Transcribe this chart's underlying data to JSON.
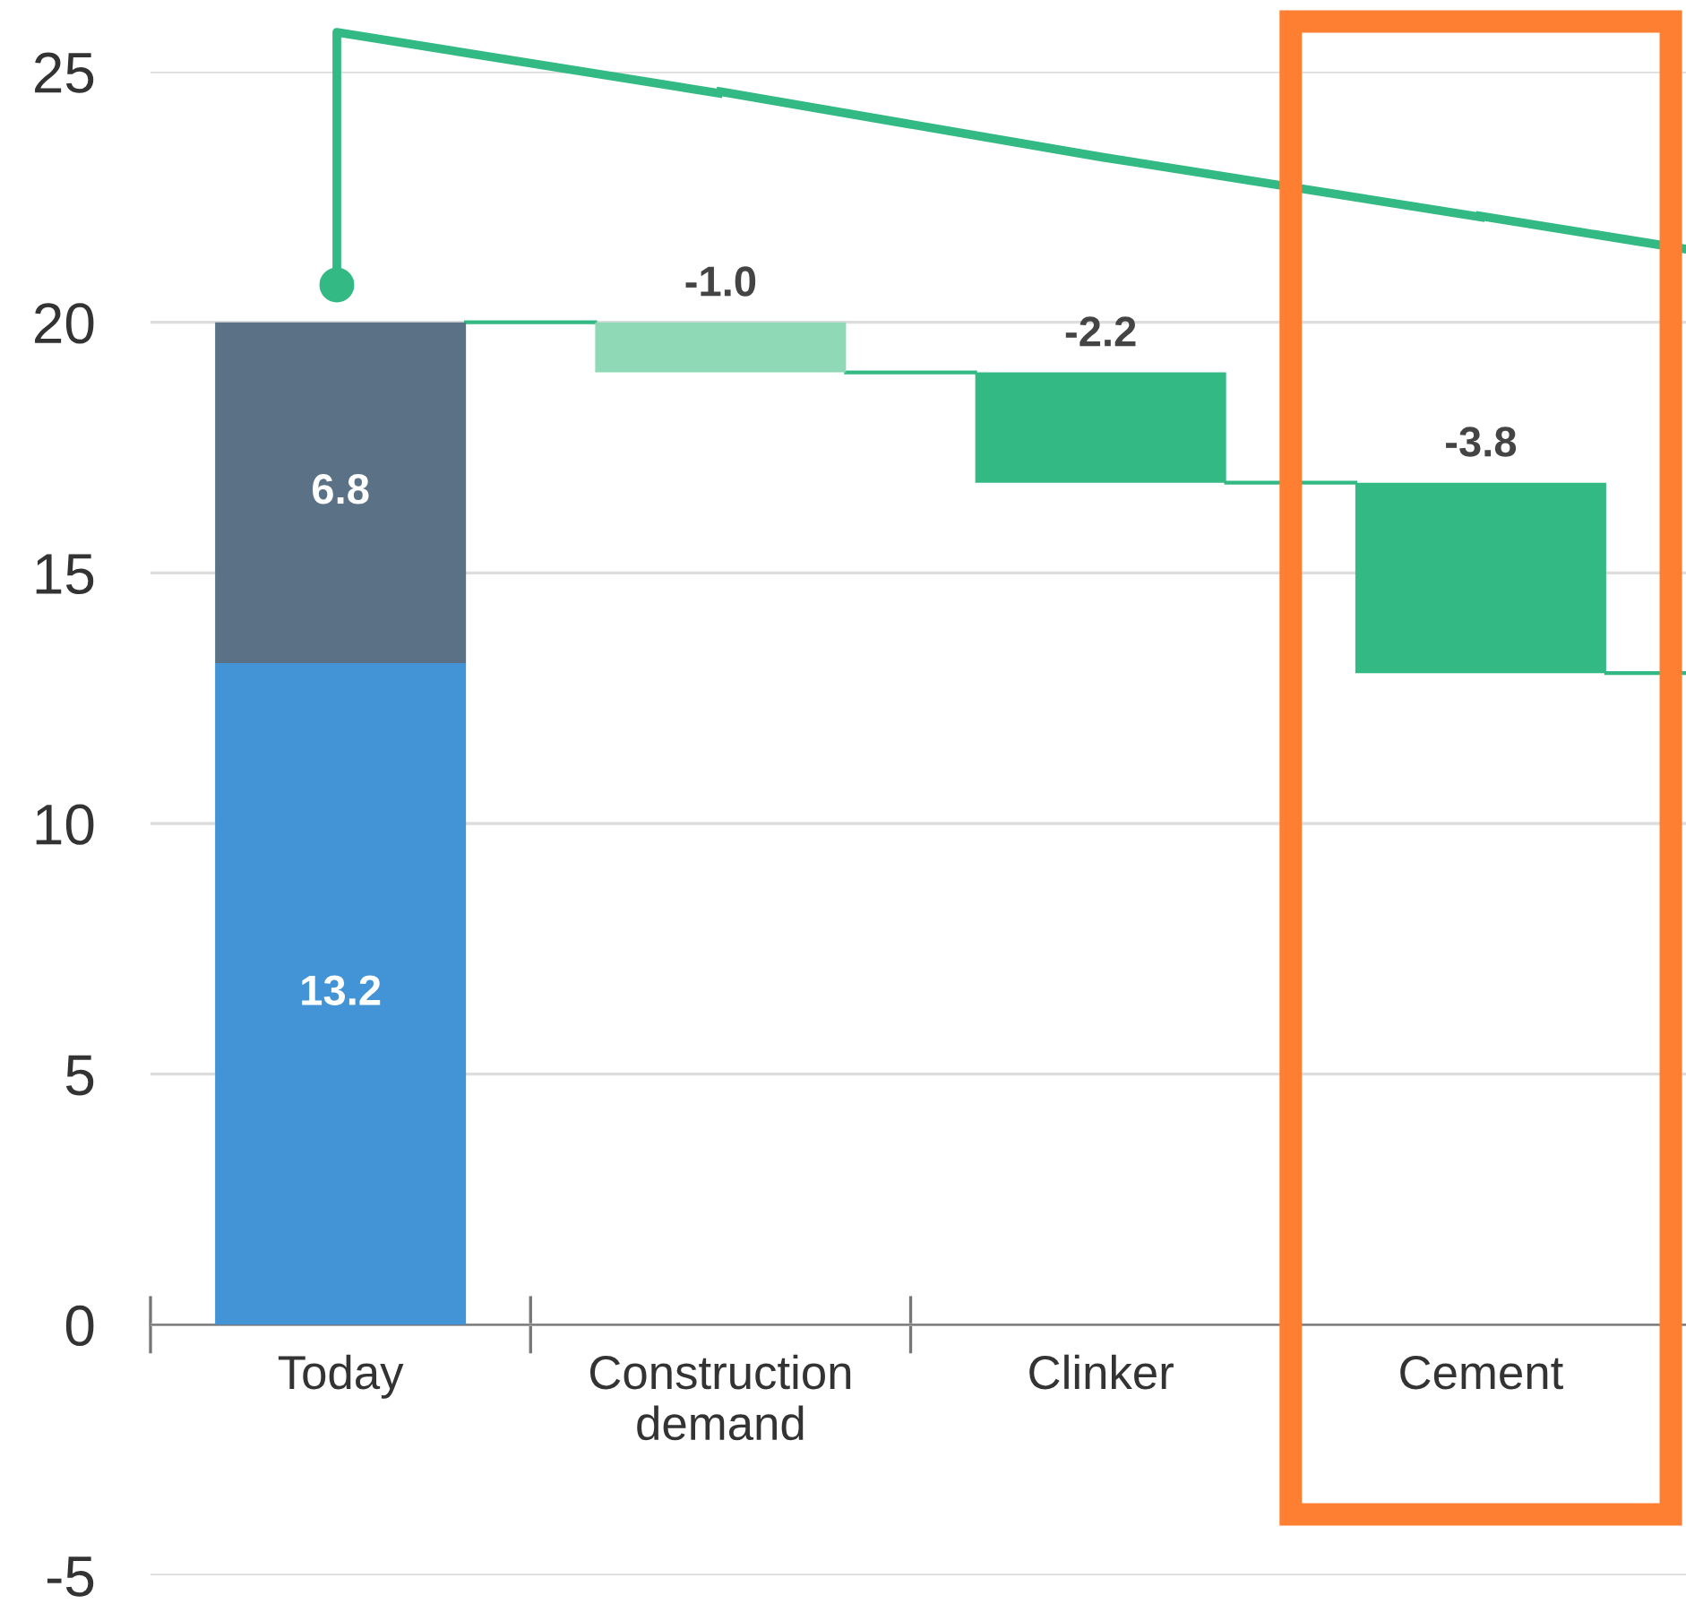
{
  "chart_data": {
    "type": "bar",
    "categories": [
      "Today",
      "Construction\ndemand",
      "Clinker",
      "Cement"
    ],
    "series": [
      {
        "color": "#4294d6",
        "values": [
          13.2,
          null,
          null,
          null
        ],
        "base": [
          0,
          null,
          null,
          null
        ],
        "value_labels": [
          "13.2",
          null,
          null,
          null
        ]
      },
      {
        "color": "#5b7286",
        "values": [
          6.8,
          null,
          null,
          null
        ],
        "base": [
          13.2,
          null,
          null,
          null
        ],
        "value_labels": [
          "6.8",
          null,
          null,
          null
        ]
      },
      {
        "colors": [
          "#33b983",
          "#8fd9b6",
          "#33b983",
          "#33b983"
        ],
        "values": [
          null,
          -1.0,
          -2.2,
          -3.8
        ],
        "base": [
          null,
          20,
          19.0,
          16.8
        ],
        "value_labels": [
          null,
          "-1.0",
          "-2.2",
          "-3.8"
        ]
      },
      {
        "type": "line",
        "color": "#33b983",
        "values": [
          null,
          24.6,
          23.3,
          22.1
        ]
      }
    ],
    "ylim": [
      -5,
      25
    ],
    "line_style": "solid",
    "yticks": [
      -5,
      0,
      5,
      10,
      15,
      20,
      25
    ],
    "grid": "y"
  }
}
